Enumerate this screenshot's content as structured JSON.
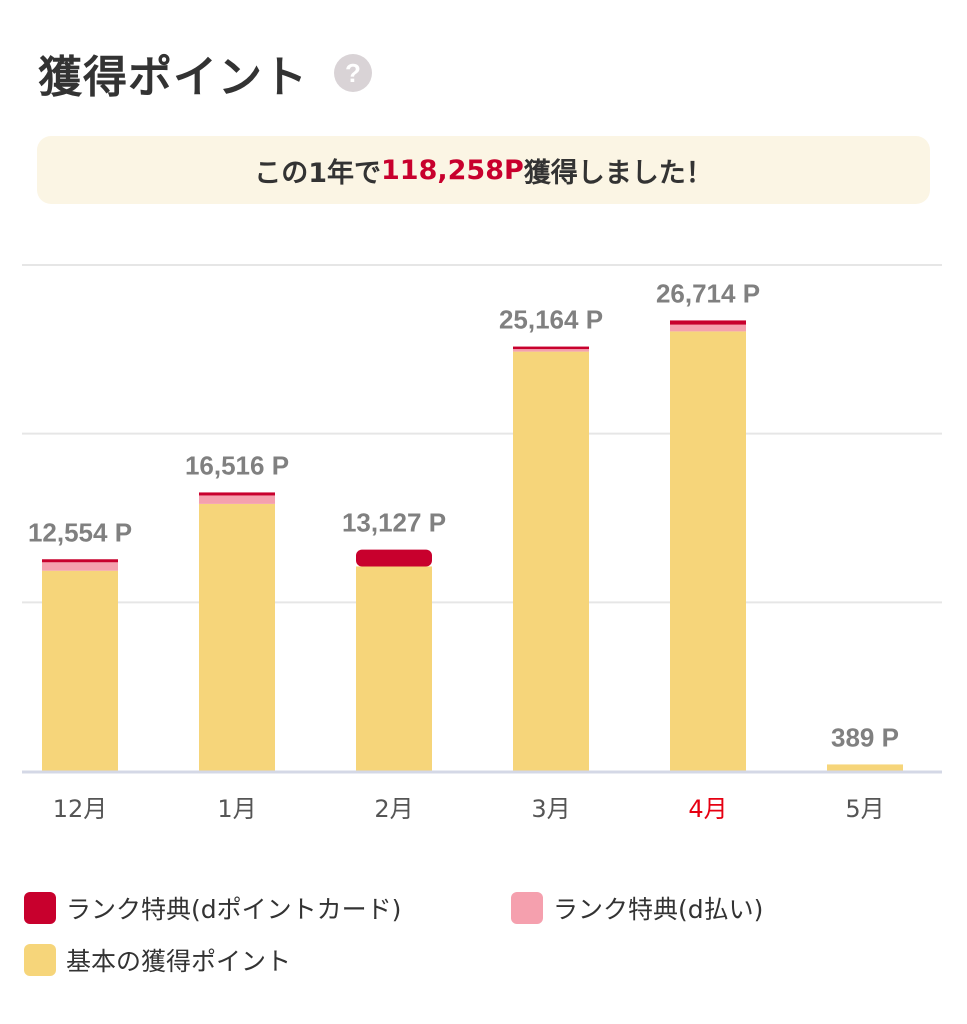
{
  "header": {
    "title": "獲得ポイント",
    "help_icon": "question-mark-icon",
    "help_glyph": "?"
  },
  "summary": {
    "prefix": "この1年で",
    "amount": "118,258P",
    "suffix": "獲得しました！"
  },
  "colors": {
    "rank_card": "#c8002d",
    "rank_dpay": "#f5a0ae",
    "basic": "#f6d57a",
    "gridline": "#e6e6e6",
    "axis": "#d4d8e6",
    "month_label": "#555555",
    "month_label_active": "#e60012",
    "value_label": "#808080"
  },
  "chart_data": {
    "type": "bar",
    "stacked": true,
    "categories": [
      "12月",
      "1月",
      "2月",
      "3月",
      "4月",
      "5月"
    ],
    "active_category": "4月",
    "totals": [
      12554,
      16516,
      13127,
      25164,
      26714,
      389
    ],
    "total_labels": [
      "12,554 P",
      "16,516 P",
      "13,127 P",
      "25,164 P",
      "26,714 P",
      "389 P"
    ],
    "series": [
      {
        "name": "基本の獲得ポイント",
        "values": [
          11874,
          15836,
          12127,
          24864,
          26064,
          389
        ]
      },
      {
        "name": "ランク特典(d払い)",
        "values": [
          500,
          500,
          0,
          150,
          400,
          0
        ]
      },
      {
        "name": "ランク特典(dポイントカード)",
        "values": [
          180,
          180,
          1000,
          150,
          250,
          0
        ]
      }
    ],
    "ylim": [
      0,
      30000
    ],
    "grid": true,
    "legend_position": "bottom"
  },
  "legend": {
    "items": [
      {
        "label": "ランク特典(dポイントカード)"
      },
      {
        "label": "ランク特典(d払い)"
      },
      {
        "label": "基本の獲得ポイント"
      }
    ]
  }
}
